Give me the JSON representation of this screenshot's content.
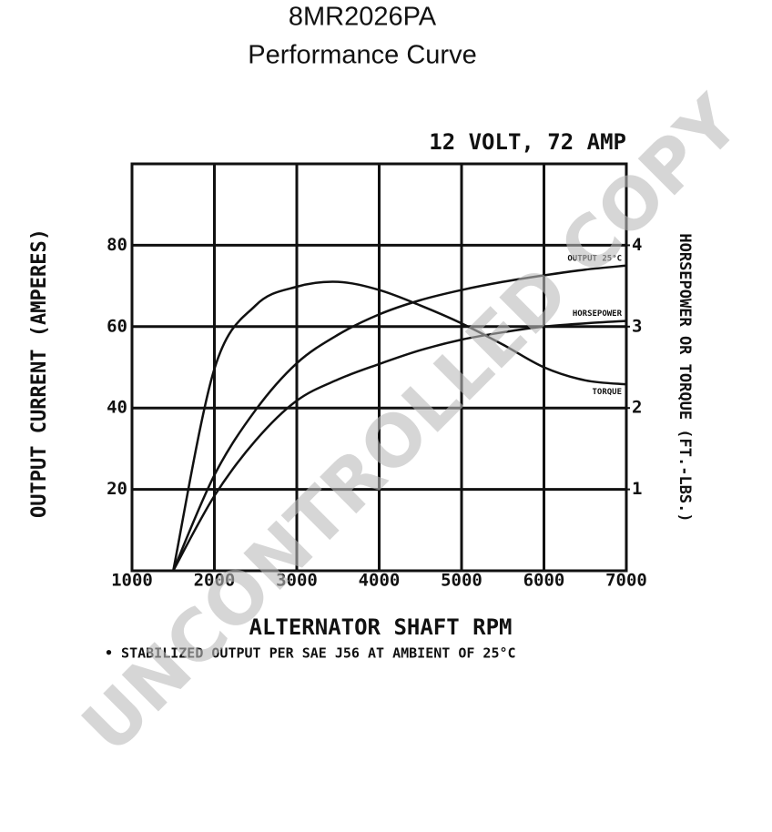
{
  "chart_data": {
    "type": "line",
    "title": "8MR2026PA",
    "subtitle": "Performance Curve",
    "chart_label": "12 VOLT, 72 AMP",
    "xlabel": "ALTERNATOR SHAFT RPM",
    "ylabel": "OUTPUT CURRENT (AMPERES)",
    "y2label": "HORSEPOWER OR TORQUE (FT.-LBS.)",
    "footnote": "• STABILIZED OUTPUT PER SAE J56 AT AMBIENT OF 25°C",
    "watermark": "UNCONTROLLED COPY",
    "x": [
      1500,
      2000,
      2500,
      3000,
      3500,
      4000,
      4500,
      5000,
      5500,
      6000,
      6500,
      7000
    ],
    "series": [
      {
        "name": "OUTPUT 25°C",
        "color": "#111111",
        "values": [
          0,
          23.5,
          39.5,
          51,
          58,
          63,
          66.5,
          69,
          71,
          72.6,
          74,
          75
        ]
      },
      {
        "name": "HORSEPOWER",
        "color": "#111111",
        "axis": "y2",
        "values": [
          0,
          0.92,
          1.6,
          2.09,
          2.35,
          2.54,
          2.71,
          2.84,
          2.93,
          3.0,
          3.04,
          3.07
        ]
      },
      {
        "name": "TORQUE",
        "color": "#111111",
        "axis": "y2",
        "values": [
          0,
          2.48,
          3.26,
          3.49,
          3.55,
          3.45,
          3.26,
          3.04,
          2.78,
          2.5,
          2.34,
          2.29
        ]
      }
    ],
    "xlim": [
      1000,
      7000
    ],
    "xticks": [
      1000,
      2000,
      3000,
      4000,
      5000,
      6000,
      7000
    ],
    "ylim": [
      0,
      100
    ],
    "yticks": [
      20,
      40,
      60,
      80
    ],
    "y2lim": [
      0,
      5
    ],
    "y2ticks": [
      1,
      2,
      3,
      4
    ],
    "grid": true
  }
}
